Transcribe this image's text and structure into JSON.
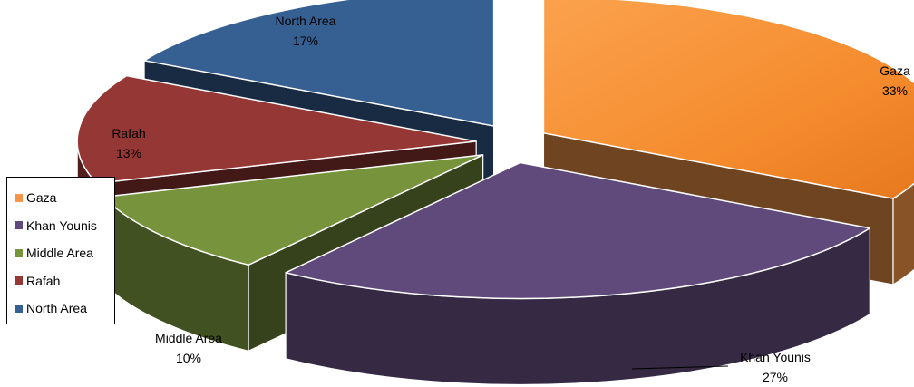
{
  "chart_data": {
    "type": "pie",
    "style": "3d-exploded",
    "categories": [
      "Gaza",
      "Khan Younis",
      "Middle Area",
      "Rafah",
      "North Area"
    ],
    "values": [
      33,
      27,
      10,
      13,
      17
    ],
    "value_labels": [
      "33%",
      "27%",
      "10%",
      "13%",
      "17%"
    ],
    "colors": [
      "#F79646",
      "#604A7B",
      "#77933C",
      "#953735",
      "#376092"
    ],
    "legend_position": "left",
    "title": ""
  }
}
